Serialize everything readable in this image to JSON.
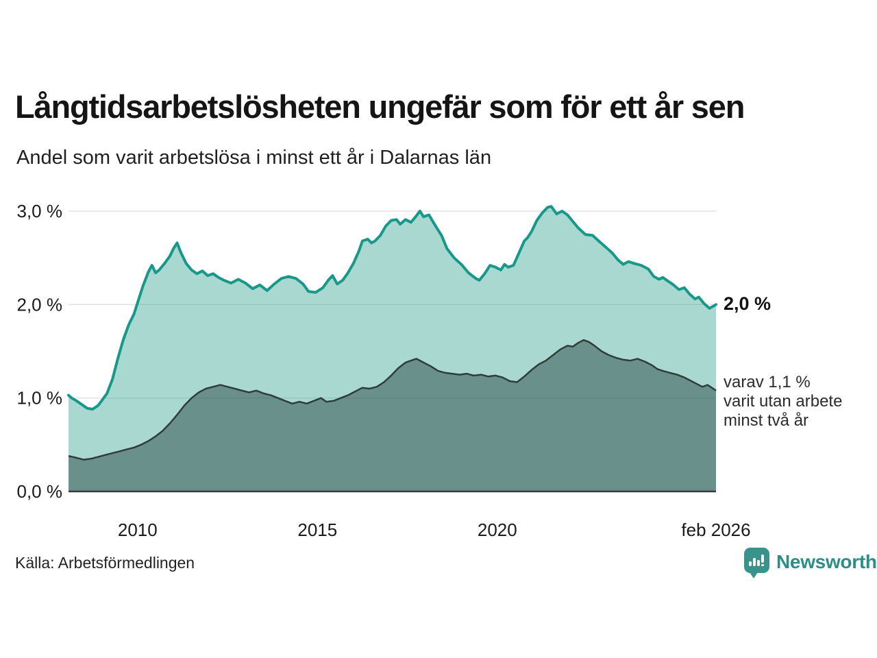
{
  "header": {
    "title": "Långtidsarbetslösheten ungefär som för ett år sen",
    "subtitle": "Andel som varit arbetslösa i minst ett år i Dalarnas län"
  },
  "chart_data": {
    "type": "area",
    "title": "Långtidsarbetslösheten ungefär som för ett år sen",
    "subtitle": "Andel som varit arbetslösa i minst ett år i Dalarnas län",
    "x_domain": [
      2008.08,
      2026.08
    ],
    "ylim": [
      0,
      3
    ],
    "grid": "horizontal",
    "legend_position": "none",
    "x_ticks": [
      {
        "value": 2010,
        "label": "2010"
      },
      {
        "value": 2015,
        "label": "2015"
      },
      {
        "value": 2020,
        "label": "2020"
      },
      {
        "value": 2026.08,
        "label": "feb 2026"
      }
    ],
    "y_ticks": [
      {
        "value": 3,
        "label": "3,0 %"
      },
      {
        "value": 2,
        "label": "2,0 %"
      },
      {
        "value": 1,
        "label": "1,0 %"
      },
      {
        "value": 0,
        "label": "0,0 %"
      }
    ],
    "colors": {
      "line_one_year": "#17988a",
      "fill_one_year": "rgba(23,150,130,0.37)",
      "line_two_years": "#2e3d39",
      "fill_two_years": "rgba(18,45,42,0.42)",
      "gridline": "#e3e3e3",
      "axis": "#3a3a3a",
      "brand_teal": "#2e8d85"
    },
    "series": [
      {
        "name": "arbetslösa minst ett år",
        "end_value": "2,0 %",
        "points": [
          [
            2008.08,
            1.03
          ],
          [
            2008.17,
            1.0
          ],
          [
            2008.3,
            0.97
          ],
          [
            2008.45,
            0.93
          ],
          [
            2008.6,
            0.89
          ],
          [
            2008.75,
            0.88
          ],
          [
            2008.9,
            0.92
          ],
          [
            2009.0,
            0.97
          ],
          [
            2009.15,
            1.05
          ],
          [
            2009.3,
            1.2
          ],
          [
            2009.45,
            1.42
          ],
          [
            2009.6,
            1.62
          ],
          [
            2009.75,
            1.78
          ],
          [
            2009.9,
            1.9
          ],
          [
            2010.0,
            2.02
          ],
          [
            2010.15,
            2.2
          ],
          [
            2010.3,
            2.35
          ],
          [
            2010.4,
            2.42
          ],
          [
            2010.5,
            2.34
          ],
          [
            2010.6,
            2.37
          ],
          [
            2010.75,
            2.44
          ],
          [
            2010.9,
            2.52
          ],
          [
            2011.0,
            2.6
          ],
          [
            2011.1,
            2.66
          ],
          [
            2011.2,
            2.56
          ],
          [
            2011.35,
            2.44
          ],
          [
            2011.5,
            2.37
          ],
          [
            2011.65,
            2.33
          ],
          [
            2011.8,
            2.36
          ],
          [
            2011.95,
            2.31
          ],
          [
            2012.1,
            2.33
          ],
          [
            2012.25,
            2.29
          ],
          [
            2012.4,
            2.26
          ],
          [
            2012.6,
            2.23
          ],
          [
            2012.8,
            2.27
          ],
          [
            2013.0,
            2.23
          ],
          [
            2013.2,
            2.17
          ],
          [
            2013.4,
            2.21
          ],
          [
            2013.6,
            2.15
          ],
          [
            2013.8,
            2.22
          ],
          [
            2014.0,
            2.28
          ],
          [
            2014.2,
            2.3
          ],
          [
            2014.4,
            2.28
          ],
          [
            2014.6,
            2.22
          ],
          [
            2014.75,
            2.14
          ],
          [
            2014.95,
            2.13
          ],
          [
            2015.15,
            2.18
          ],
          [
            2015.3,
            2.26
          ],
          [
            2015.42,
            2.31
          ],
          [
            2015.55,
            2.22
          ],
          [
            2015.7,
            2.26
          ],
          [
            2015.85,
            2.34
          ],
          [
            2016.0,
            2.44
          ],
          [
            2016.15,
            2.57
          ],
          [
            2016.25,
            2.68
          ],
          [
            2016.4,
            2.7
          ],
          [
            2016.5,
            2.66
          ],
          [
            2016.6,
            2.68
          ],
          [
            2016.75,
            2.74
          ],
          [
            2016.9,
            2.84
          ],
          [
            2017.05,
            2.9
          ],
          [
            2017.2,
            2.91
          ],
          [
            2017.3,
            2.86
          ],
          [
            2017.45,
            2.91
          ],
          [
            2017.6,
            2.88
          ],
          [
            2017.75,
            2.95
          ],
          [
            2017.85,
            3.0
          ],
          [
            2017.95,
            2.94
          ],
          [
            2018.1,
            2.96
          ],
          [
            2018.3,
            2.83
          ],
          [
            2018.45,
            2.74
          ],
          [
            2018.6,
            2.6
          ],
          [
            2018.8,
            2.5
          ],
          [
            2019.0,
            2.43
          ],
          [
            2019.2,
            2.34
          ],
          [
            2019.4,
            2.28
          ],
          [
            2019.5,
            2.26
          ],
          [
            2019.65,
            2.33
          ],
          [
            2019.8,
            2.42
          ],
          [
            2019.95,
            2.4
          ],
          [
            2020.1,
            2.37
          ],
          [
            2020.2,
            2.43
          ],
          [
            2020.3,
            2.4
          ],
          [
            2020.45,
            2.42
          ],
          [
            2020.6,
            2.55
          ],
          [
            2020.75,
            2.68
          ],
          [
            2020.85,
            2.72
          ],
          [
            2020.95,
            2.78
          ],
          [
            2021.1,
            2.9
          ],
          [
            2021.25,
            2.98
          ],
          [
            2021.4,
            3.04
          ],
          [
            2021.5,
            3.05
          ],
          [
            2021.65,
            2.97
          ],
          [
            2021.8,
            3.0
          ],
          [
            2021.95,
            2.96
          ],
          [
            2022.1,
            2.89
          ],
          [
            2022.25,
            2.82
          ],
          [
            2022.45,
            2.75
          ],
          [
            2022.65,
            2.74
          ],
          [
            2022.85,
            2.67
          ],
          [
            2023.0,
            2.62
          ],
          [
            2023.2,
            2.55
          ],
          [
            2023.35,
            2.48
          ],
          [
            2023.5,
            2.43
          ],
          [
            2023.65,
            2.46
          ],
          [
            2023.8,
            2.44
          ],
          [
            2024.0,
            2.42
          ],
          [
            2024.2,
            2.38
          ],
          [
            2024.35,
            2.3
          ],
          [
            2024.5,
            2.27
          ],
          [
            2024.6,
            2.29
          ],
          [
            2024.75,
            2.25
          ],
          [
            2024.9,
            2.21
          ],
          [
            2025.05,
            2.16
          ],
          [
            2025.2,
            2.18
          ],
          [
            2025.35,
            2.11
          ],
          [
            2025.5,
            2.06
          ],
          [
            2025.6,
            2.08
          ],
          [
            2025.75,
            2.01
          ],
          [
            2025.9,
            1.96
          ],
          [
            2026.08,
            2.0
          ]
        ]
      },
      {
        "name": "arbetslösa minst två år",
        "end_value": "1,1 %",
        "points": [
          [
            2008.08,
            0.38
          ],
          [
            2008.3,
            0.36
          ],
          [
            2008.5,
            0.34
          ],
          [
            2008.7,
            0.35
          ],
          [
            2008.9,
            0.37
          ],
          [
            2009.1,
            0.39
          ],
          [
            2009.3,
            0.41
          ],
          [
            2009.5,
            0.43
          ],
          [
            2009.7,
            0.45
          ],
          [
            2009.9,
            0.47
          ],
          [
            2010.1,
            0.5
          ],
          [
            2010.3,
            0.54
          ],
          [
            2010.5,
            0.59
          ],
          [
            2010.7,
            0.65
          ],
          [
            2010.9,
            0.73
          ],
          [
            2011.1,
            0.82
          ],
          [
            2011.3,
            0.92
          ],
          [
            2011.5,
            1.0
          ],
          [
            2011.7,
            1.06
          ],
          [
            2011.9,
            1.1
          ],
          [
            2012.1,
            1.12
          ],
          [
            2012.3,
            1.14
          ],
          [
            2012.5,
            1.12
          ],
          [
            2012.7,
            1.1
          ],
          [
            2012.9,
            1.08
          ],
          [
            2013.1,
            1.06
          ],
          [
            2013.3,
            1.08
          ],
          [
            2013.5,
            1.05
          ],
          [
            2013.7,
            1.03
          ],
          [
            2013.9,
            1.0
          ],
          [
            2014.1,
            0.97
          ],
          [
            2014.3,
            0.94
          ],
          [
            2014.5,
            0.96
          ],
          [
            2014.7,
            0.94
          ],
          [
            2014.9,
            0.97
          ],
          [
            2015.1,
            1.0
          ],
          [
            2015.25,
            0.96
          ],
          [
            2015.45,
            0.97
          ],
          [
            2015.65,
            1.0
          ],
          [
            2015.85,
            1.03
          ],
          [
            2016.05,
            1.07
          ],
          [
            2016.25,
            1.11
          ],
          [
            2016.45,
            1.1
          ],
          [
            2016.65,
            1.12
          ],
          [
            2016.85,
            1.17
          ],
          [
            2017.05,
            1.24
          ],
          [
            2017.25,
            1.32
          ],
          [
            2017.45,
            1.38
          ],
          [
            2017.6,
            1.4
          ],
          [
            2017.75,
            1.42
          ],
          [
            2017.95,
            1.38
          ],
          [
            2018.15,
            1.34
          ],
          [
            2018.35,
            1.29
          ],
          [
            2018.55,
            1.27
          ],
          [
            2018.75,
            1.26
          ],
          [
            2018.95,
            1.25
          ],
          [
            2019.15,
            1.26
          ],
          [
            2019.35,
            1.24
          ],
          [
            2019.55,
            1.25
          ],
          [
            2019.75,
            1.23
          ],
          [
            2019.95,
            1.24
          ],
          [
            2020.15,
            1.22
          ],
          [
            2020.35,
            1.18
          ],
          [
            2020.55,
            1.17
          ],
          [
            2020.75,
            1.23
          ],
          [
            2020.95,
            1.3
          ],
          [
            2021.15,
            1.36
          ],
          [
            2021.35,
            1.4
          ],
          [
            2021.55,
            1.46
          ],
          [
            2021.75,
            1.52
          ],
          [
            2021.95,
            1.56
          ],
          [
            2022.1,
            1.55
          ],
          [
            2022.25,
            1.59
          ],
          [
            2022.4,
            1.62
          ],
          [
            2022.55,
            1.6
          ],
          [
            2022.7,
            1.56
          ],
          [
            2022.9,
            1.5
          ],
          [
            2023.1,
            1.46
          ],
          [
            2023.3,
            1.43
          ],
          [
            2023.5,
            1.41
          ],
          [
            2023.7,
            1.4
          ],
          [
            2023.9,
            1.42
          ],
          [
            2024.1,
            1.39
          ],
          [
            2024.3,
            1.35
          ],
          [
            2024.45,
            1.31
          ],
          [
            2024.6,
            1.29
          ],
          [
            2024.8,
            1.27
          ],
          [
            2025.0,
            1.25
          ],
          [
            2025.2,
            1.22
          ],
          [
            2025.4,
            1.18
          ],
          [
            2025.55,
            1.15
          ],
          [
            2025.7,
            1.12
          ],
          [
            2025.85,
            1.14
          ],
          [
            2026.08,
            1.08
          ]
        ]
      }
    ],
    "end_label": "2,0 %",
    "end_note_lines": [
      "varav 1,1 %",
      "varit utan arbete",
      "minst två år"
    ]
  },
  "footer": {
    "source": "Källa: Arbetsförmedlingen",
    "brand": "Newsworthy"
  }
}
